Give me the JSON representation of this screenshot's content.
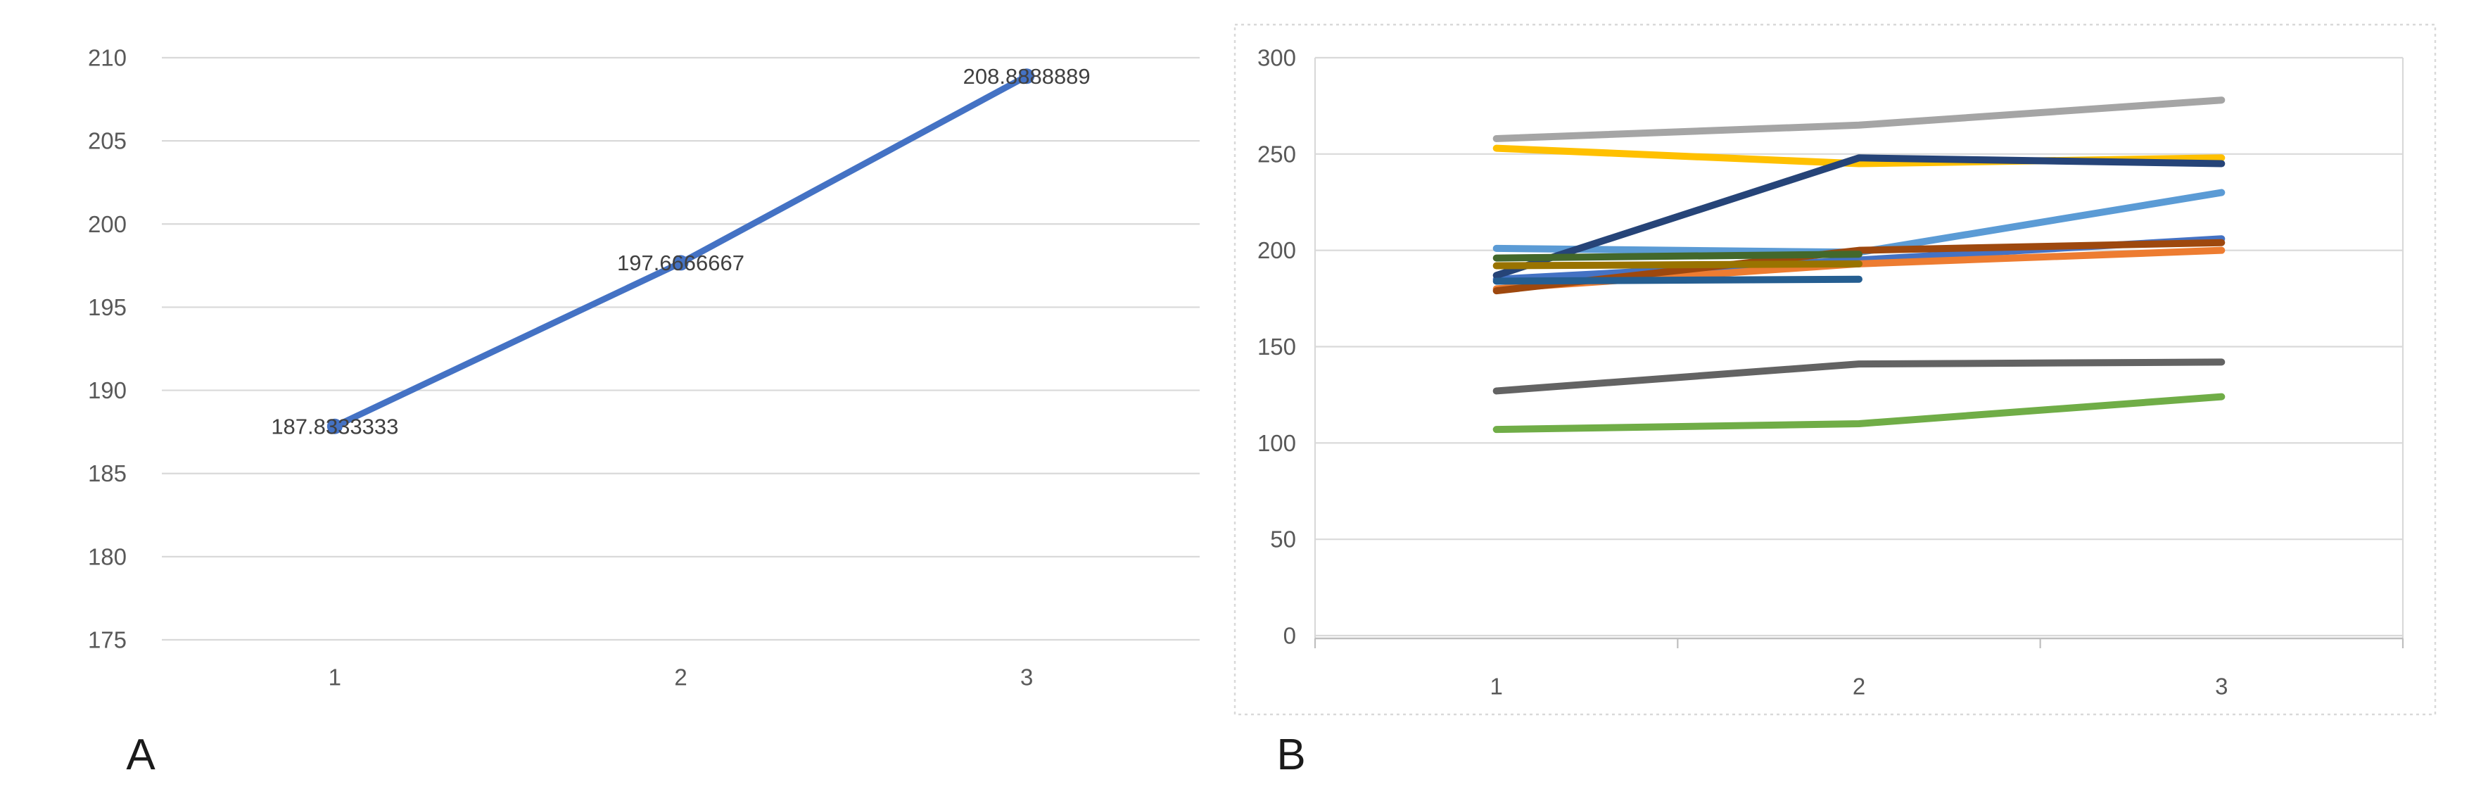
{
  "figure": {
    "background": "#FFFFFF",
    "panel_a_label": "A",
    "panel_b_label": "B"
  },
  "style": {
    "gridline_color": "#D9D9D9",
    "axis_line_color": "#BFBFBF",
    "tick_label_color": "#595959",
    "data_label_color": "#404040",
    "selection_border_color": "#D9D9D9"
  },
  "chart_data": [
    {
      "id": "A",
      "type": "line",
      "title": "",
      "xlabel": "",
      "ylabel": "",
      "categories": [
        "1",
        "2",
        "3"
      ],
      "ylim": [
        175,
        210
      ],
      "yticks": [
        175,
        180,
        185,
        190,
        195,
        200,
        205,
        210
      ],
      "grid": true,
      "legend": "none",
      "series": [
        {
          "color": "#4472C4",
          "marker": true,
          "values": [
            187.8333333,
            197.6666667,
            208.8888889
          ],
          "data_labels": [
            "187.8333333",
            "197.6666667",
            "208.8888889"
          ]
        }
      ]
    },
    {
      "id": "B",
      "type": "line",
      "title": "",
      "xlabel": "",
      "ylabel": "",
      "categories": [
        "1",
        "2",
        "3"
      ],
      "ylim": [
        0,
        300
      ],
      "yticks": [
        0,
        50,
        100,
        150,
        200,
        250,
        300
      ],
      "grid": true,
      "legend": "none",
      "dashed_selection_border": true,
      "series": [
        {
          "color": "#4472C4",
          "values": [
            185,
            195,
            206
          ]
        },
        {
          "color": "#ED7C31",
          "values": [
            180,
            193,
            200
          ]
        },
        {
          "color": "#A5A5A5",
          "values": [
            258,
            265,
            278
          ]
        },
        {
          "color": "#FFC000",
          "values": [
            253,
            245,
            248
          ]
        },
        {
          "color": "#5B9BD5",
          "values": [
            201,
            199,
            230
          ]
        },
        {
          "color": "#70AD47",
          "values": [
            107,
            110,
            124
          ]
        },
        {
          "color": "#264478",
          "values": [
            187,
            248,
            245
          ]
        },
        {
          "color": "#9E480E",
          "values": [
            179,
            200,
            204
          ]
        },
        {
          "color": "#636363",
          "values": [
            127,
            141,
            142
          ]
        },
        {
          "color": "#997300",
          "values": [
            192,
            193
          ]
        },
        {
          "color": "#255E91",
          "values": [
            184,
            185
          ]
        },
        {
          "color": "#43682B",
          "values": [
            196,
            198
          ]
        }
      ]
    }
  ]
}
